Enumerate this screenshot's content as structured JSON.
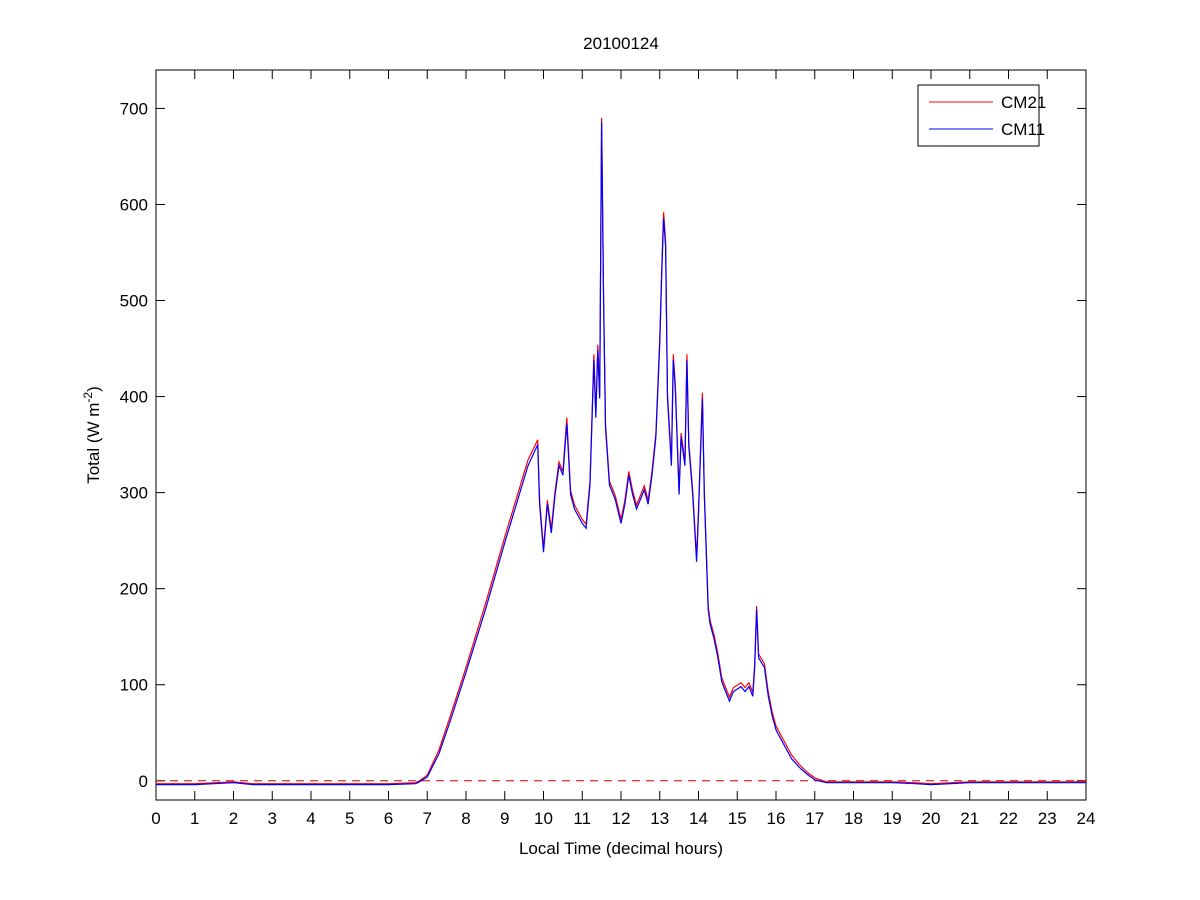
{
  "chart_data": {
    "type": "line",
    "title": "20100124",
    "xlabel": "Local Time (decimal hours)",
    "ylabel": "Total (W m",
    "ylabel_sup": "-2",
    "ylabel_end": ")",
    "xlim": [
      0,
      24
    ],
    "ylim": [
      -20,
      740
    ],
    "xticks": [
      0,
      1,
      2,
      3,
      4,
      5,
      6,
      7,
      8,
      9,
      10,
      11,
      12,
      13,
      14,
      15,
      16,
      17,
      18,
      19,
      20,
      21,
      22,
      23,
      24
    ],
    "yticks": [
      0,
      100,
      200,
      300,
      400,
      500,
      600,
      700
    ],
    "grid": false,
    "legend_placement": "top-right",
    "reference_line": {
      "y": 0,
      "color": "#cc0000",
      "style": "dashed"
    },
    "x": [
      0,
      1,
      2,
      2.5,
      3,
      4,
      5,
      6,
      6.7,
      6.8,
      7,
      7.3,
      7.6,
      8,
      8.5,
      9,
      9.3,
      9.6,
      9.85,
      9.9,
      10.0,
      10.1,
      10.2,
      10.3,
      10.4,
      10.5,
      10.6,
      10.7,
      10.8,
      11.0,
      11.1,
      11.2,
      11.3,
      11.35,
      11.4,
      11.45,
      11.5,
      11.55,
      11.6,
      11.7,
      11.85,
      12.0,
      12.1,
      12.2,
      12.3,
      12.4,
      12.6,
      12.7,
      12.8,
      12.9,
      13.0,
      13.05,
      13.1,
      13.15,
      13.2,
      13.3,
      13.35,
      13.4,
      13.5,
      13.55,
      13.65,
      13.7,
      13.75,
      13.85,
      13.95,
      14.0,
      14.1,
      14.15,
      14.25,
      14.3,
      14.4,
      14.5,
      14.6,
      14.7,
      14.8,
      14.9,
      15.1,
      15.2,
      15.3,
      15.4,
      15.45,
      15.5,
      15.55,
      15.7,
      15.8,
      15.9,
      16.0,
      16.2,
      16.4,
      16.6,
      16.8,
      17.0,
      17.3,
      18,
      19,
      19.6,
      20,
      21,
      22,
      23,
      24
    ],
    "series": [
      {
        "name": "CM21",
        "color": "#ff0000",
        "values": [
          -3,
          -3,
          -1,
          -3,
          -3,
          -3,
          -3,
          -3,
          -2,
          0,
          6,
          32,
          68,
          118,
          184,
          254,
          294,
          334,
          355,
          292,
          242,
          292,
          262,
          302,
          332,
          322,
          378,
          302,
          287,
          272,
          267,
          312,
          444,
          382,
          454,
          402,
          690,
          502,
          372,
          312,
          297,
          272,
          292,
          322,
          302,
          287,
          307,
          292,
          322,
          362,
          462,
          532,
          592,
          562,
          402,
          332,
          444,
          412,
          302,
          362,
          332,
          444,
          352,
          302,
          232,
          282,
          404,
          302,
          182,
          167,
          152,
          132,
          107,
          97,
          87,
          97,
          102,
          97,
          102,
          92,
          122,
          182,
          132,
          122,
          92,
          72,
          57,
          42,
          27,
          17,
          9,
          3,
          -1,
          -1,
          -1,
          -2,
          -3,
          -1,
          -1,
          -1,
          -1
        ]
      },
      {
        "name": "CM11",
        "color": "#0000ff",
        "values": [
          -4,
          -4,
          -2,
          -4,
          -4,
          -4,
          -4,
          -4,
          -3,
          -1,
          4,
          28,
          63,
          113,
          178,
          248,
          288,
          328,
          350,
          288,
          238,
          288,
          258,
          298,
          328,
          318,
          372,
          298,
          283,
          268,
          263,
          308,
          438,
          378,
          448,
          398,
          686,
          498,
          368,
          308,
          293,
          268,
          288,
          318,
          298,
          283,
          303,
          288,
          318,
          358,
          456,
          526,
          586,
          556,
          398,
          328,
          438,
          408,
          298,
          358,
          328,
          438,
          348,
          298,
          228,
          278,
          398,
          298,
          178,
          163,
          148,
          128,
          103,
          93,
          83,
          93,
          98,
          93,
          98,
          88,
          118,
          178,
          128,
          118,
          88,
          68,
          53,
          38,
          23,
          14,
          7,
          1,
          -2,
          -2,
          -2,
          -3,
          -4,
          -2,
          -2,
          -2,
          -2
        ]
      }
    ]
  }
}
